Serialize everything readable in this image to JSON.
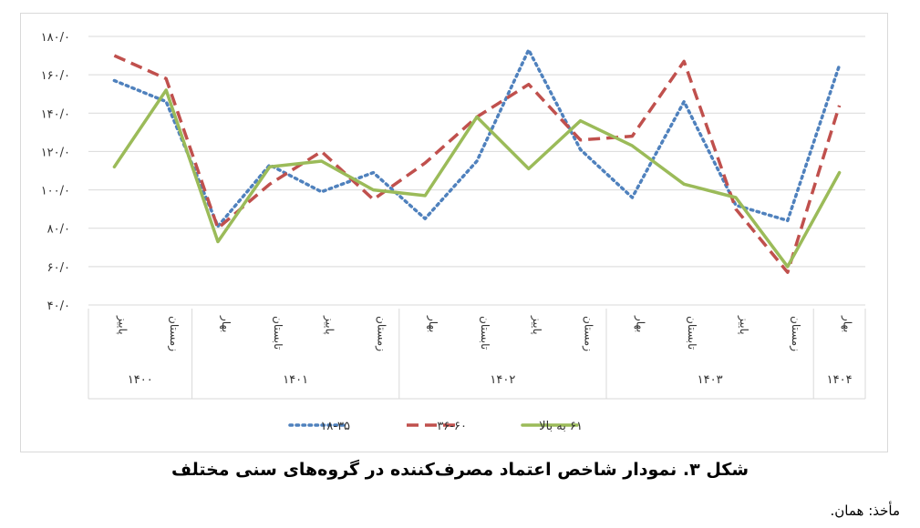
{
  "chart_data": {
    "type": "line",
    "ylim": [
      40,
      180
    ],
    "yticks": [
      40,
      60,
      80,
      100,
      120,
      140,
      160,
      180
    ],
    "ytick_labels": [
      "۴۰/۰",
      "۶۰/۰",
      "۸۰/۰",
      "۱۰۰/۰",
      "۱۲۰/۰",
      "۱۴۰/۰",
      "۱۶۰/۰",
      "۱۸۰/۰"
    ],
    "x": [
      "پاییز",
      "زمستان",
      "بهار",
      "تابستان",
      "پاییز",
      "زمستان",
      "بهار",
      "تابستان",
      "پاییز",
      "زمستان",
      "بهار",
      "تابستان",
      "پاییز",
      "زمستان",
      "بهار"
    ],
    "years": [
      {
        "label": "۱۴۰۰",
        "count": 2
      },
      {
        "label": "۱۴۰۱",
        "count": 4
      },
      {
        "label": "۱۴۰۲",
        "count": 4
      },
      {
        "label": "۱۴۰۳",
        "count": 4
      },
      {
        "label": "۱۴۰۴",
        "count": 1
      }
    ],
    "series": [
      {
        "name": "۱۸-۳۵",
        "color": "#4f81bd",
        "style": "dotted",
        "values": [
          157,
          146,
          81,
          113,
          99,
          109,
          85,
          115,
          173,
          121,
          96,
          146,
          92,
          84,
          165
        ]
      },
      {
        "name": "۳۶-۶۰",
        "color": "#c0504d",
        "style": "dashed",
        "values": [
          170,
          158,
          80,
          103,
          120,
          95,
          114,
          138,
          155,
          126,
          128,
          167,
          90,
          57,
          144
        ]
      },
      {
        "name": "۶۱ به بالا",
        "color": "#9bbb59",
        "style": "solid",
        "values": [
          112,
          152,
          73,
          112,
          115,
          100,
          97,
          138,
          111,
          136,
          123,
          103,
          96,
          60,
          109
        ]
      }
    ],
    "legend_position": "bottom"
  },
  "caption": "شکل ۳. نمودار شاخص اعتماد مصرف‌کننده در گروه‌های سنی مختلف",
  "source": "مأخذ: همان."
}
